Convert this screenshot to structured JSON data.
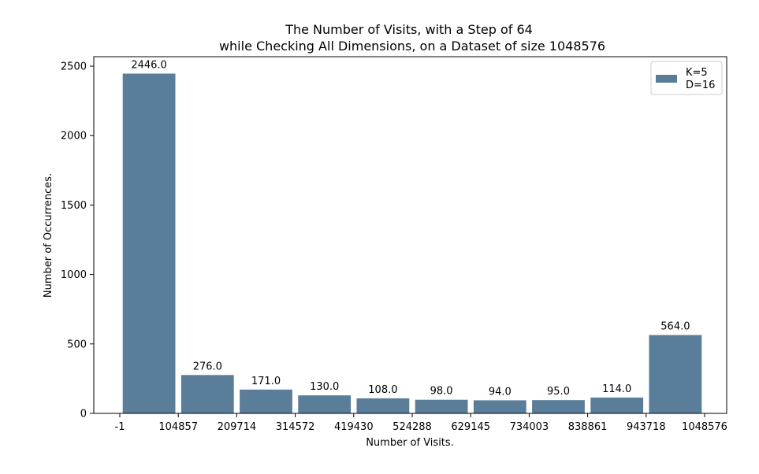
{
  "chart_data": {
    "type": "bar",
    "title_line1": "The Number of Visits, with a Step of 64",
    "title_line2": "while Checking All Dimensions, on a Dataset of size 1048576",
    "xlabel": "Number of Visits.",
    "ylabel": "Number of Occurrences.",
    "x_tick_labels": [
      "-1",
      "104857",
      "209714",
      "314572",
      "419430",
      "524288",
      "629145",
      "734003",
      "838861",
      "943718",
      "1048576"
    ],
    "y_ticks": [
      0,
      500,
      1000,
      1500,
      2000,
      2500
    ],
    "y_tick_labels": [
      "0",
      "500",
      "1000",
      "1500",
      "2000",
      "2500"
    ],
    "ylim": [
      0,
      2568
    ],
    "values": [
      2446,
      276,
      171,
      130,
      108,
      98,
      94,
      95,
      114,
      564
    ],
    "value_labels": [
      "2446.0",
      "276.0",
      "171.0",
      "130.0",
      "108.0",
      "98.0",
      "94.0",
      "95.0",
      "114.0",
      "564.0"
    ],
    "bar_color": "#5a7d9a",
    "grid": false,
    "legend": {
      "placement": "top-right",
      "line1": "K=5",
      "line2": "D=16"
    }
  }
}
